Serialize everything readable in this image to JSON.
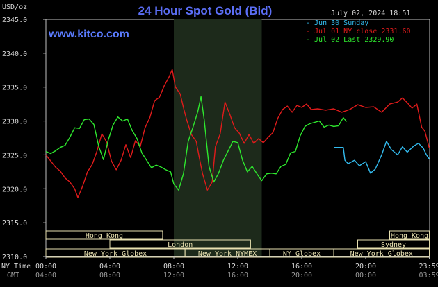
{
  "header": {
    "unit": "USD/oz",
    "title": "24 Hour Spot Gold (Bid)",
    "datetime": "July 02, 2024 18:51",
    "site": "www.kitco.com"
  },
  "legend": [
    {
      "label": "Jun 30 Sunday",
      "color": "#33bbee"
    },
    {
      "label": "Jul 01 NY close 2331.60",
      "color": "#e01b1b"
    },
    {
      "label": "Jul 02 Last 2329.90",
      "color": "#2ee82e"
    }
  ],
  "axis_labels": {
    "ny_time": "NY Time",
    "gmt": "GMT"
  },
  "x_ticks_ny": [
    "00:00",
    "04:00",
    "08:00",
    "12:00",
    "16:00",
    "20:00",
    "23:59"
  ],
  "x_ticks_gmt": [
    "04:00",
    "08:00",
    "12:00",
    "16:00",
    "20:00",
    "00:00",
    "03:59"
  ],
  "sessions": [
    {
      "label": "Hong Kong",
      "start": 0,
      "end": 7.3
    },
    {
      "label": "London",
      "start": 4,
      "end": 12.8
    },
    {
      "label": "New York Globex",
      "start": 0,
      "end": 8.7
    },
    {
      "label": "New York NYMEX",
      "start": 8.7,
      "end": 14
    },
    {
      "label": "NY Globex",
      "start": 14,
      "end": 18
    },
    {
      "label": "Hong Kong",
      "start": 21.5,
      "end": 23.98
    },
    {
      "label": "Sydney",
      "start": 19.5,
      "end": 23.98
    },
    {
      "label": "New York Globex",
      "start": 18,
      "end": 23.98
    }
  ],
  "chart_data": {
    "type": "line",
    "xlabel": "NY Time",
    "ylabel": "USD/oz",
    "xlim": [
      0,
      24
    ],
    "ylim": [
      2310,
      2345
    ],
    "yticks": [
      2310,
      2315,
      2320,
      2325,
      2330,
      2335,
      2340,
      2345
    ],
    "highlight_band": [
      8,
      13.5
    ],
    "grid": false,
    "series": [
      {
        "name": "Jun 30 Sunday",
        "color": "#33bbee",
        "x": [
          18.0,
          18.6,
          18.7,
          18.9,
          19.3,
          19.6,
          20.0,
          20.3,
          20.6,
          21.0,
          21.3,
          21.6,
          22.0,
          22.3,
          22.6,
          23.0,
          23.3,
          23.6,
          23.8,
          23.98
        ],
        "y": [
          2326.1,
          2326.1,
          2324.2,
          2323.7,
          2324.2,
          2323.4,
          2324.0,
          2322.3,
          2322.9,
          2325.0,
          2327.0,
          2325.8,
          2325.0,
          2326.2,
          2325.4,
          2326.3,
          2326.7,
          2326.0,
          2325.0,
          2324.4
        ]
      },
      {
        "name": "Jul 01 NY close 2331.60",
        "color": "#e01b1b",
        "x": [
          0.0,
          0.3,
          0.6,
          0.9,
          1.2,
          1.5,
          1.8,
          2.0,
          2.3,
          2.6,
          2.9,
          3.2,
          3.5,
          3.8,
          4.1,
          4.4,
          4.7,
          5.0,
          5.3,
          5.6,
          5.9,
          6.2,
          6.5,
          6.8,
          7.1,
          7.4,
          7.7,
          7.9,
          8.1,
          8.4,
          8.6,
          8.8,
          9.1,
          9.4,
          9.6,
          9.8,
          10.1,
          10.4,
          10.6,
          10.9,
          11.2,
          11.5,
          11.8,
          12.1,
          12.4,
          12.7,
          13.0,
          13.3,
          13.6,
          13.9,
          14.2,
          14.5,
          14.8,
          15.1,
          15.4,
          15.7,
          16.0,
          16.3,
          16.6,
          17.0,
          17.5,
          18.0,
          18.5,
          19.0,
          19.5,
          20.0,
          20.5,
          21.0,
          21.5,
          22.0,
          22.3,
          22.6,
          22.9,
          23.2,
          23.5,
          23.7,
          23.98
        ],
        "y": [
          2325.0,
          2324.1,
          2323.2,
          2322.6,
          2321.6,
          2321.0,
          2320.0,
          2318.7,
          2320.4,
          2322.5,
          2323.6,
          2325.6,
          2328.1,
          2326.9,
          2324.1,
          2322.8,
          2324.2,
          2326.5,
          2324.6,
          2327.1,
          2326.2,
          2329.0,
          2330.5,
          2333.0,
          2333.5,
          2335.2,
          2336.5,
          2337.6,
          2335.0,
          2334.0,
          2332.0,
          2330.2,
          2328.0,
          2327.0,
          2324.5,
          2322.2,
          2319.8,
          2321.0,
          2326.2,
          2328.1,
          2332.8,
          2331.0,
          2329.0,
          2328.2,
          2326.7,
          2328.0,
          2326.7,
          2327.4,
          2326.8,
          2327.6,
          2328.3,
          2330.4,
          2331.7,
          2332.2,
          2331.3,
          2332.3,
          2332.0,
          2332.5,
          2331.7,
          2331.8,
          2331.6,
          2331.8,
          2331.3,
          2331.7,
          2332.4,
          2332.0,
          2332.1,
          2331.3,
          2332.5,
          2332.8,
          2333.4,
          2332.7,
          2331.9,
          2332.5,
          2329.1,
          2328.5,
          2326.0
        ]
      },
      {
        "name": "Jul 02 Last 2329.90",
        "color": "#2ee82e",
        "x": [
          0.0,
          0.3,
          0.6,
          0.9,
          1.2,
          1.5,
          1.8,
          2.1,
          2.4,
          2.7,
          3.0,
          3.3,
          3.6,
          3.9,
          4.2,
          4.5,
          4.8,
          5.1,
          5.4,
          5.7,
          6.0,
          6.3,
          6.6,
          6.9,
          7.2,
          7.5,
          7.8,
          8.0,
          8.3,
          8.6,
          8.9,
          9.2,
          9.5,
          9.7,
          9.9,
          10.2,
          10.5,
          10.8,
          11.1,
          11.4,
          11.7,
          12.0,
          12.3,
          12.6,
          12.9,
          13.2,
          13.5,
          13.8,
          14.1,
          14.4,
          14.7,
          15.0,
          15.3,
          15.6,
          15.9,
          16.2,
          16.5,
          16.8,
          17.1,
          17.4,
          17.7,
          18.0,
          18.3,
          18.6,
          18.8
        ],
        "y": [
          2325.5,
          2325.2,
          2325.6,
          2326.1,
          2326.4,
          2327.6,
          2329.0,
          2328.9,
          2330.2,
          2330.3,
          2329.5,
          2326.3,
          2324.3,
          2327.2,
          2329.4,
          2330.6,
          2330.0,
          2330.3,
          2328.6,
          2327.4,
          2325.3,
          2324.2,
          2323.1,
          2323.5,
          2323.2,
          2322.8,
          2322.5,
          2320.7,
          2319.8,
          2322.2,
          2327.0,
          2329.1,
          2331.4,
          2333.6,
          2330.2,
          2323.3,
          2321.0,
          2322.3,
          2324.2,
          2325.6,
          2327.0,
          2326.8,
          2324.2,
          2322.5,
          2323.3,
          2322.2,
          2321.2,
          2322.2,
          2322.3,
          2322.2,
          2323.3,
          2323.6,
          2325.3,
          2325.5,
          2327.8,
          2329.2,
          2329.6,
          2329.8,
          2330.0,
          2329.1,
          2329.4,
          2329.2,
          2329.3,
          2330.5,
          2329.9
        ]
      }
    ]
  }
}
